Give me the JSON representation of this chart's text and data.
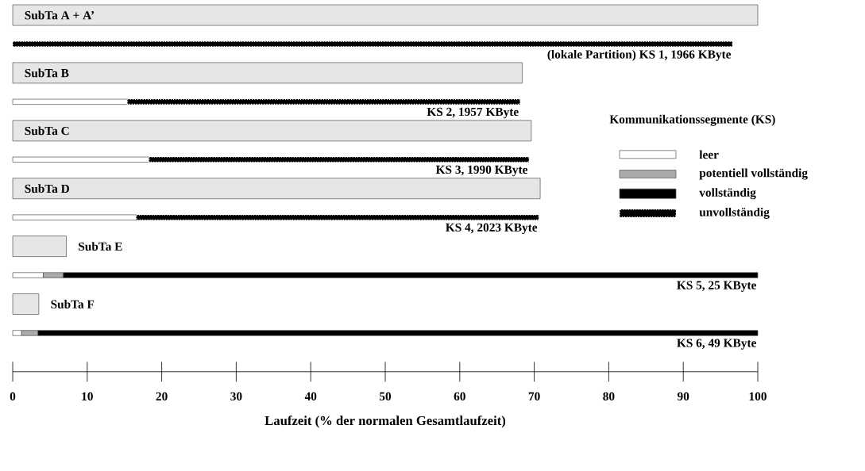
{
  "chart_data": {
    "type": "bar",
    "orientation": "horizontal",
    "stacked": true,
    "categories": [
      "SubTa A + A’",
      "(lokale Partition) KS 1,  1966 KByte",
      "SubTa B",
      "KS 2,  1957 KByte",
      "SubTa C",
      "KS 3,  1990 KByte",
      "SubTa D",
      "KS 4,  2023 KByte",
      "SubTa E",
      "KS 5,  25 KByte",
      "SubTa F",
      "KS 6,  49 KByte"
    ],
    "series": [
      {
        "color": "#e6e6e6",
        "values": [
          100,
          null,
          68.4,
          null,
          69.6,
          null,
          70.8,
          null,
          7.2,
          null,
          3.5,
          null
        ]
      },
      {
        "name": "leer",
        "color": "#ffffff",
        "values": [
          null,
          null,
          null,
          15.4,
          null,
          18.3,
          null,
          16.6,
          null,
          4.1,
          null,
          1.2
        ]
      },
      {
        "name": "potentiell vollständig",
        "color": "#aaaaaa",
        "values": [
          null,
          null,
          null,
          null,
          null,
          null,
          null,
          null,
          null,
          2.7,
          null,
          2.2
        ]
      },
      {
        "name": "vollständig",
        "color": "#000000",
        "values": [
          null,
          null,
          null,
          null,
          null,
          null,
          null,
          null,
          null,
          93.2,
          null,
          96.6
        ]
      },
      {
        "name": "unvollständig",
        "color": "#000000",
        "line_style": "dashed",
        "values": [
          null,
          96.6,
          null,
          52.7,
          null,
          51.0,
          null,
          54.0,
          null,
          null,
          null,
          null
        ]
      }
    ],
    "xlim": [
      0,
      100
    ],
    "xticks": [
      0,
      10,
      20,
      30,
      40,
      50,
      60,
      70,
      80,
      90,
      100
    ],
    "xlabel": "Laufzeit  (% der normalen Gesamtlaufzeit)",
    "legend": "right",
    "legend_title": "Kommunikationssegmente (KS)"
  }
}
